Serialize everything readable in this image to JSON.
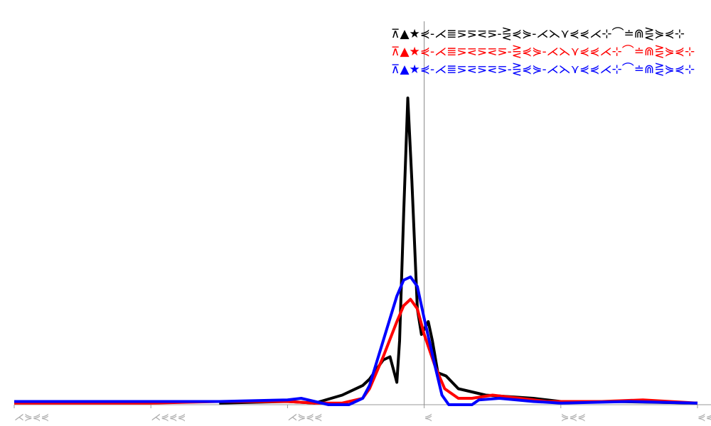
{
  "chart_data": {
    "type": "line",
    "xlim": [
      -300,
      200
    ],
    "ylim": [
      0,
      1
    ],
    "xticks": [
      {
        "value": -300,
        "label": "⋌⋟⋞⋞"
      },
      {
        "value": -200,
        "label": "⋌⋞⋞⋞"
      },
      {
        "value": -100,
        "label": "⋌⋟⋞⋞"
      },
      {
        "value": 0,
        "label": "⋞"
      },
      {
        "value": 100,
        "label": "⋟⋞⋞"
      },
      {
        "value": 200,
        "label": "⋞⋞"
      }
    ],
    "series": [
      {
        "name": "⊼▲★⋞-⋌≣⋝⋝⋜⋝-⋛⋞⋟-⋌⋋⋎⋞⋞⋌⊹⌒≐⋒⋛⋟⋞⊹",
        "color": "#000000",
        "x": [
          -150,
          -100,
          -80,
          -60,
          -45,
          -40,
          -30,
          -25,
          -20,
          -18,
          -15,
          -12,
          -9,
          -5,
          -2,
          3,
          6,
          10,
          16,
          25,
          35,
          45,
          80,
          100,
          140,
          200
        ],
        "values": [
          0.005,
          0.01,
          0.005,
          0.03,
          0.06,
          0.08,
          0.14,
          0.15,
          0.07,
          0.2,
          0.6,
          0.96,
          0.7,
          0.3,
          0.22,
          0.26,
          0.2,
          0.1,
          0.09,
          0.05,
          0.04,
          0.03,
          0.02,
          0.01,
          0.01,
          0.005
        ]
      },
      {
        "name": "⊼▲★⋞-⋌≣⋝⋜⋝⋜⋝-⋛⋞⋟-⋌⋋⋎⋞⋞⋌⊹⌒≐⋒⋛⋟⋞⊹",
        "color": "#ff0000",
        "x": [
          -300,
          -200,
          -150,
          -120,
          -100,
          -80,
          -60,
          -45,
          -40,
          -30,
          -20,
          -15,
          -10,
          -5,
          0,
          8,
          15,
          25,
          35,
          50,
          70,
          90,
          130,
          160,
          200
        ],
        "values": [
          0.005,
          0.005,
          0.01,
          0.01,
          0.01,
          0.005,
          0.005,
          0.02,
          0.05,
          0.15,
          0.26,
          0.31,
          0.33,
          0.3,
          0.22,
          0.12,
          0.05,
          0.02,
          0.02,
          0.03,
          0.02,
          0.01,
          0.01,
          0.015,
          0.005
        ]
      },
      {
        "name": "⊼▲★⋞-⋌≣⋝⋜⋝⋜⋝-⋛⋞⋟-⋌⋋⋎⋞⋞⋌⊹⌒≐⋒⋛⋟⋞⊹",
        "color": "#0000ff",
        "x": [
          -300,
          -200,
          -150,
          -100,
          -90,
          -80,
          -70,
          -55,
          -45,
          -40,
          -30,
          -20,
          -15,
          -10,
          -5,
          0,
          8,
          13,
          18,
          35,
          40,
          55,
          80,
          100,
          150,
          200
        ],
        "values": [
          0.01,
          0.01,
          0.01,
          0.015,
          0.02,
          0.01,
          0,
          0,
          0.02,
          0.06,
          0.2,
          0.34,
          0.39,
          0.4,
          0.37,
          0.27,
          0.12,
          0.03,
          0,
          0,
          0.015,
          0.02,
          0.01,
          0.005,
          0.01,
          0.005
        ]
      }
    ]
  }
}
